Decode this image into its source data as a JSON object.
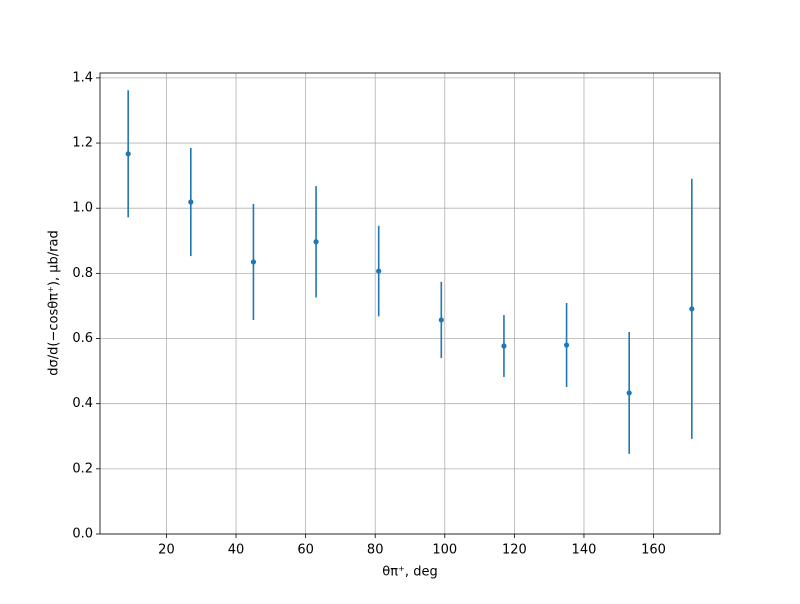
{
  "chart_data": {
    "type": "errorbar",
    "xlabel": "θπ⁺, deg",
    "ylabel": "dσ/d(−cosθπ⁺), μb/rad",
    "x": [
      9,
      27,
      45,
      63,
      81,
      99,
      117,
      135,
      153,
      171
    ],
    "series": [
      {
        "color": "#1f77b4",
        "values": [
          1.167,
          1.019,
          0.835,
          0.897,
          0.807,
          0.657,
          0.577,
          0.58,
          0.433,
          0.691
        ],
        "errors": [
          0.195,
          0.166,
          0.178,
          0.171,
          0.139,
          0.117,
          0.095,
          0.129,
          0.187,
          0.399
        ]
      }
    ],
    "xlim": [
      0.9,
      179.1
    ],
    "ylim": [
      0,
      1.415
    ],
    "xticks": [
      20,
      40,
      60,
      80,
      100,
      120,
      140,
      160
    ],
    "yticks": [
      {
        "value": 0,
        "label": "0.0"
      },
      0.2,
      0.4,
      0.6,
      0.8,
      {
        "value": 1,
        "label": "1.0"
      },
      1.2,
      1.4
    ],
    "grid": true
  }
}
